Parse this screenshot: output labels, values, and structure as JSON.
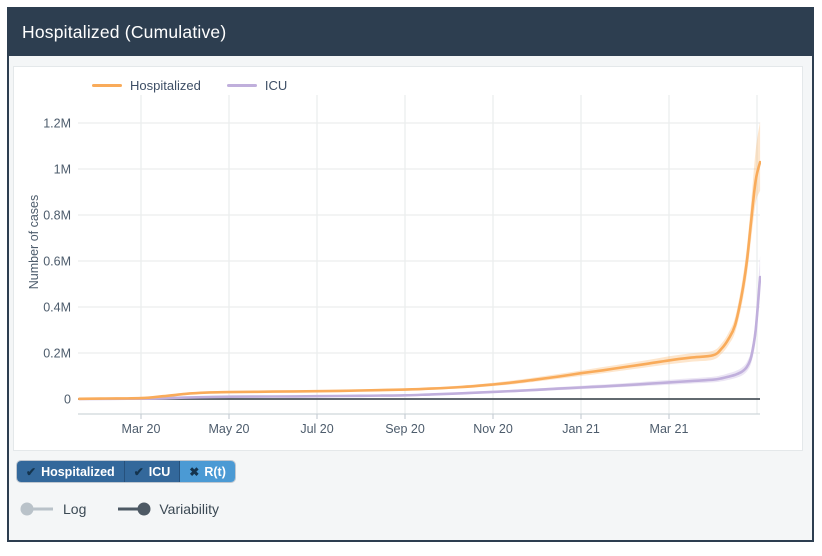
{
  "header": {
    "title": "Hospitalized (Cumulative)"
  },
  "legend": [
    {
      "label": "Hospitalized",
      "color": "#f9ab5a"
    },
    {
      "label": "ICU",
      "color": "#c0afdc"
    }
  ],
  "filter_buttons": [
    {
      "label": "Hospitalized",
      "glyph": "✔",
      "state": "on",
      "bg": "#33689b"
    },
    {
      "label": "ICU",
      "glyph": "✔",
      "state": "on",
      "bg": "#33689b"
    },
    {
      "label": "R(t)",
      "glyph": "✖",
      "state": "off",
      "bg": "#4b9ad4"
    }
  ],
  "toggles": [
    {
      "label": "Log",
      "on": false,
      "color_off": "#b9c2c9"
    },
    {
      "label": "Variability",
      "on": true,
      "color_on": "#4d5964"
    }
  ],
  "colors": {
    "header_bg": "#2d3e50",
    "card_border": "#2d3e50",
    "panel_bg": "#f4f6f7",
    "plot_bg": "#ffffff",
    "grid": "#eceded",
    "zero_line": "#4c545c",
    "axis_line": "#cfd6da",
    "tick_text": "#4d5c6c"
  },
  "chart_data": {
    "type": "line",
    "title": "Hospitalized (Cumulative)",
    "xlabel": "",
    "ylabel": "Number of cases",
    "grid": true,
    "legend_position": "top-left",
    "x_unit": "months since Jan 1 2020 (0 = Jan 2020)",
    "xlim_months": [
      0.55,
      16.1
    ],
    "ylim": [
      0,
      1280000
    ],
    "x_ticks": [
      {
        "m": 2,
        "label": "Mar 20"
      },
      {
        "m": 4,
        "label": "May 20"
      },
      {
        "m": 6,
        "label": "Jul 20"
      },
      {
        "m": 8,
        "label": "Sep 20"
      },
      {
        "m": 10,
        "label": "Nov 20"
      },
      {
        "m": 12,
        "label": "Jan 21"
      },
      {
        "m": 14,
        "label": "Mar 21"
      }
    ],
    "x_gridline_months": [
      2,
      4,
      6,
      8,
      10,
      12,
      14,
      16
    ],
    "y_ticks": [
      {
        "value": 0,
        "label": "0"
      },
      {
        "value": 200000,
        "label": "0.2M"
      },
      {
        "value": 400000,
        "label": "0.4M"
      },
      {
        "value": 600000,
        "label": "0.6M"
      },
      {
        "value": 800000,
        "label": "0.8M"
      },
      {
        "value": 1000000,
        "label": "1M"
      },
      {
        "value": 1200000,
        "label": "1.2M"
      }
    ],
    "series": [
      {
        "name": "Hospitalized",
        "color": "#f9ab5a",
        "band_opacity": 0.3,
        "points": [
          [
            0.6,
            1000
          ],
          [
            1.2,
            2000
          ],
          [
            2,
            4000
          ],
          [
            2.5,
            12000
          ],
          [
            3,
            22000
          ],
          [
            3.5,
            28000
          ],
          [
            4,
            30000
          ],
          [
            5,
            32000
          ],
          [
            6,
            34000
          ],
          [
            7,
            37000
          ],
          [
            8,
            41000
          ],
          [
            8.6,
            45000
          ],
          [
            9.3,
            52000
          ],
          [
            10,
            63000
          ],
          [
            10.5,
            73000
          ],
          [
            11,
            85000
          ],
          [
            11.5,
            98000
          ],
          [
            12,
            112000
          ],
          [
            12.5,
            125000
          ],
          [
            13,
            139000
          ],
          [
            13.5,
            153000
          ],
          [
            14,
            168000
          ],
          [
            14.5,
            180000
          ],
          [
            15,
            190000
          ],
          [
            15.2,
            220000
          ],
          [
            15.35,
            260000
          ],
          [
            15.5,
            320000
          ],
          [
            15.65,
            450000
          ],
          [
            15.77,
            600000
          ],
          [
            15.87,
            780000
          ],
          [
            15.97,
            950000
          ],
          [
            16.07,
            1030000
          ]
        ],
        "band_hi": [
          [
            0.6,
            1500
          ],
          [
            1.2,
            3000
          ],
          [
            2,
            6000
          ],
          [
            2.5,
            15000
          ],
          [
            3,
            26000
          ],
          [
            3.5,
            32000
          ],
          [
            4,
            34000
          ],
          [
            5,
            36000
          ],
          [
            6,
            38000
          ],
          [
            7,
            42000
          ],
          [
            8,
            46000
          ],
          [
            8.6,
            51000
          ],
          [
            9.3,
            59000
          ],
          [
            10,
            71000
          ],
          [
            10.5,
            82000
          ],
          [
            11,
            95000
          ],
          [
            11.5,
            109000
          ],
          [
            12,
            124000
          ],
          [
            12.5,
            139000
          ],
          [
            13,
            154000
          ],
          [
            13.5,
            169000
          ],
          [
            14,
            186000
          ],
          [
            14.5,
            199000
          ],
          [
            15,
            210000
          ],
          [
            15.2,
            243000
          ],
          [
            15.35,
            287000
          ],
          [
            15.5,
            353000
          ],
          [
            15.65,
            497000
          ],
          [
            15.77,
            663000
          ],
          [
            15.87,
            862000
          ],
          [
            15.97,
            1082000
          ],
          [
            16.07,
            1205000
          ]
        ],
        "band_lo": [
          [
            0.6,
            500
          ],
          [
            1.2,
            1200
          ],
          [
            2,
            2500
          ],
          [
            2.5,
            9000
          ],
          [
            3,
            18000
          ],
          [
            3.5,
            24000
          ],
          [
            4,
            26000
          ],
          [
            5,
            28000
          ],
          [
            6,
            30000
          ],
          [
            7,
            33000
          ],
          [
            8,
            36000
          ],
          [
            8.6,
            40000
          ],
          [
            9.3,
            46000
          ],
          [
            10,
            56000
          ],
          [
            10.5,
            65000
          ],
          [
            11,
            76000
          ],
          [
            11.5,
            88000
          ],
          [
            12,
            100000
          ],
          [
            12.5,
            112000
          ],
          [
            13,
            125000
          ],
          [
            13.5,
            138000
          ],
          [
            14,
            151000
          ],
          [
            14.5,
            162000
          ],
          [
            15,
            171000
          ],
          [
            15.2,
            198000
          ],
          [
            15.35,
            234000
          ],
          [
            15.5,
            288000
          ],
          [
            15.65,
            405000
          ],
          [
            15.77,
            540000
          ],
          [
            15.87,
            700000
          ],
          [
            15.97,
            852000
          ],
          [
            16.07,
            905000
          ]
        ]
      },
      {
        "name": "ICU",
        "color": "#c0afdc",
        "band_opacity": 0.32,
        "points": [
          [
            0.6,
            500
          ],
          [
            2,
            1500
          ],
          [
            2.5,
            3000
          ],
          [
            3,
            6000
          ],
          [
            4,
            10000
          ],
          [
            5,
            11000
          ],
          [
            6,
            12000
          ],
          [
            7,
            14000
          ],
          [
            8,
            16000
          ],
          [
            8.6,
            20000
          ],
          [
            9.3,
            25000
          ],
          [
            10,
            31000
          ],
          [
            10.5,
            35000
          ],
          [
            11,
            40000
          ],
          [
            11.5,
            45000
          ],
          [
            12,
            50000
          ],
          [
            12.5,
            55000
          ],
          [
            13,
            60000
          ],
          [
            13.5,
            66000
          ],
          [
            14,
            72000
          ],
          [
            14.5,
            78000
          ],
          [
            15,
            84000
          ],
          [
            15.2,
            90000
          ],
          [
            15.35,
            97000
          ],
          [
            15.5,
            105000
          ],
          [
            15.65,
            118000
          ],
          [
            15.77,
            140000
          ],
          [
            15.87,
            185000
          ],
          [
            15.97,
            300000
          ],
          [
            16.07,
            530000
          ]
        ],
        "band_hi": [
          [
            0.6,
            800
          ],
          [
            2,
            2200
          ],
          [
            2.5,
            4000
          ],
          [
            3,
            7500
          ],
          [
            4,
            12000
          ],
          [
            5,
            13000
          ],
          [
            6,
            14500
          ],
          [
            7,
            17000
          ],
          [
            8,
            19000
          ],
          [
            8.6,
            24000
          ],
          [
            9.3,
            30000
          ],
          [
            10,
            36000
          ],
          [
            10.5,
            41000
          ],
          [
            11,
            46000
          ],
          [
            11.5,
            52000
          ],
          [
            12,
            58000
          ],
          [
            12.5,
            63000
          ],
          [
            13,
            69000
          ],
          [
            13.5,
            76000
          ],
          [
            14,
            83000
          ],
          [
            14.5,
            90000
          ],
          [
            15,
            97000
          ],
          [
            15.2,
            104000
          ],
          [
            15.35,
            112000
          ],
          [
            15.5,
            121000
          ],
          [
            15.65,
            136000
          ],
          [
            15.77,
            162000
          ],
          [
            15.87,
            215000
          ],
          [
            15.97,
            350000
          ],
          [
            16.07,
            622000
          ]
        ],
        "band_lo": [
          [
            0.6,
            300
          ],
          [
            2,
            1000
          ],
          [
            2.5,
            2200
          ],
          [
            3,
            4800
          ],
          [
            4,
            8200
          ],
          [
            5,
            9000
          ],
          [
            6,
            10000
          ],
          [
            7,
            11500
          ],
          [
            8,
            13200
          ],
          [
            8.6,
            16500
          ],
          [
            9.3,
            20800
          ],
          [
            10,
            26000
          ],
          [
            10.5,
            29500
          ],
          [
            11,
            34000
          ],
          [
            11.5,
            38500
          ],
          [
            12,
            43000
          ],
          [
            12.5,
            47500
          ],
          [
            13,
            52000
          ],
          [
            13.5,
            57000
          ],
          [
            14,
            62000
          ],
          [
            14.5,
            67000
          ],
          [
            15,
            72000
          ],
          [
            15.2,
            77000
          ],
          [
            15.35,
            83000
          ],
          [
            15.5,
            90000
          ],
          [
            15.65,
            101000
          ],
          [
            15.77,
            120000
          ],
          [
            15.87,
            157000
          ],
          [
            15.97,
            253000
          ],
          [
            16.07,
            452000
          ]
        ]
      }
    ]
  }
}
